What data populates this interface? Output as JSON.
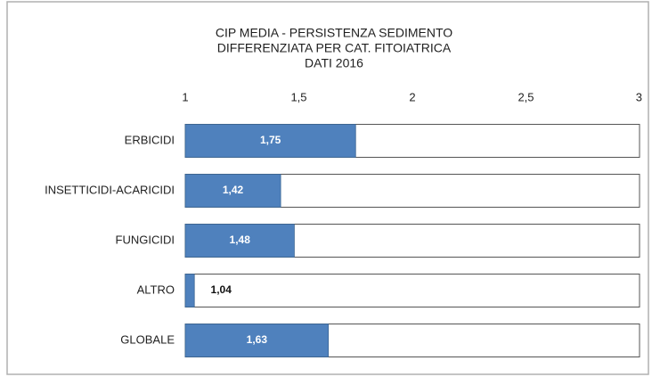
{
  "chart_data": {
    "type": "barh",
    "title": [
      "CIP MEDIA - PERSISTENZA SEDIMENTO",
      "DIFFERENZIATA PER CAT. FITOIATRICA",
      "DATI  2016"
    ],
    "categories": [
      "ERBICIDI",
      "INSETTICIDI-ACARICIDI",
      "FUNGICIDI",
      "ALTRO",
      "GLOBALE"
    ],
    "values": [
      1.75,
      1.42,
      1.48,
      1.04,
      1.63
    ],
    "value_labels": [
      "1,75",
      "1,42",
      "1,48",
      "1,04",
      "1,63"
    ],
    "color": "#4f81bd",
    "xlim": [
      1,
      3
    ],
    "xticks": [
      1,
      {
        "value": 1.5,
        "label": "1,5"
      },
      2,
      {
        "value": 2.5,
        "label": "2,5"
      },
      3
    ],
    "grid": false
  }
}
